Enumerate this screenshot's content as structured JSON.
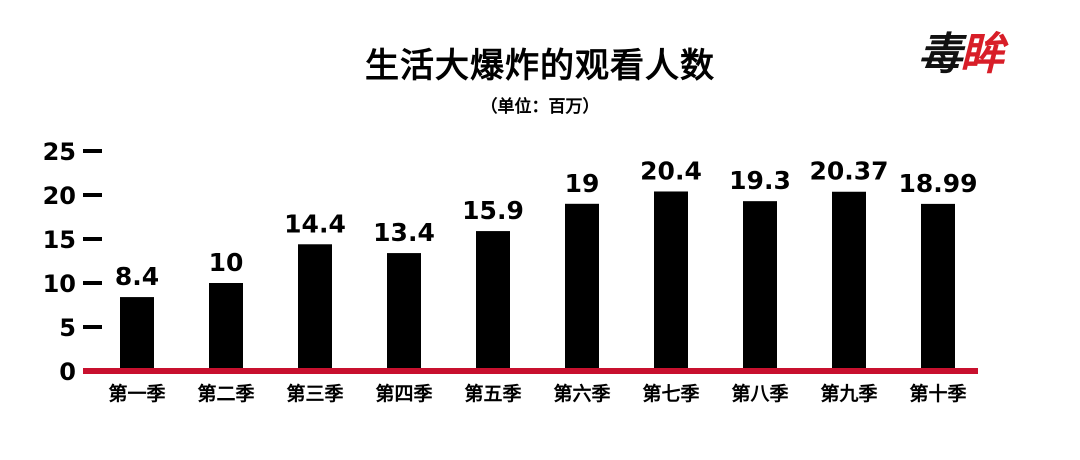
{
  "brand": {
    "logo_text_1": "毒",
    "logo_text_2": "眸",
    "color_dark": "#111111",
    "color_red": "#d81e28"
  },
  "chart_data": {
    "type": "bar",
    "title": "生活大爆炸的观看人数",
    "subtitle": "（单位：百万）",
    "categories": [
      "第一季",
      "第二季",
      "第三季",
      "第四季",
      "第五季",
      "第六季",
      "第七季",
      "第八季",
      "第九季",
      "第十季"
    ],
    "values": [
      8.4,
      10,
      14.4,
      13.4,
      15.9,
      19,
      20.4,
      19.3,
      20.37,
      18.99
    ],
    "value_labels": [
      "8.4",
      "10",
      "14.4",
      "13.4",
      "15.9",
      "19",
      "20.4",
      "19.3",
      "20.37",
      "18.99"
    ],
    "y_ticks": [
      0,
      5,
      10,
      15,
      20,
      25
    ],
    "ylim": [
      0,
      25
    ],
    "xlabel": "",
    "ylabel": "",
    "grid": false,
    "bar_color": "#000000",
    "baseline_color": "#c8102e"
  }
}
